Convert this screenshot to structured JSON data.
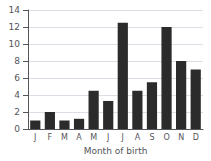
{
  "chart_data": {
    "type": "bar",
    "categories": [
      "J",
      "F",
      "M",
      "A",
      "M",
      "J",
      "J",
      "A",
      "S",
      "O",
      "N",
      "D"
    ],
    "values": [
      1.0,
      2.0,
      1.0,
      1.2,
      4.5,
      3.3,
      12.5,
      4.5,
      5.5,
      12.0,
      8.0,
      7.0
    ],
    "color": "#2b2b2b",
    "xlabel": "Month of birth",
    "ylim": [
      0,
      14
    ],
    "yticks": [
      0,
      2,
      4,
      6,
      8,
      10,
      12,
      14
    ],
    "grid": true
  }
}
